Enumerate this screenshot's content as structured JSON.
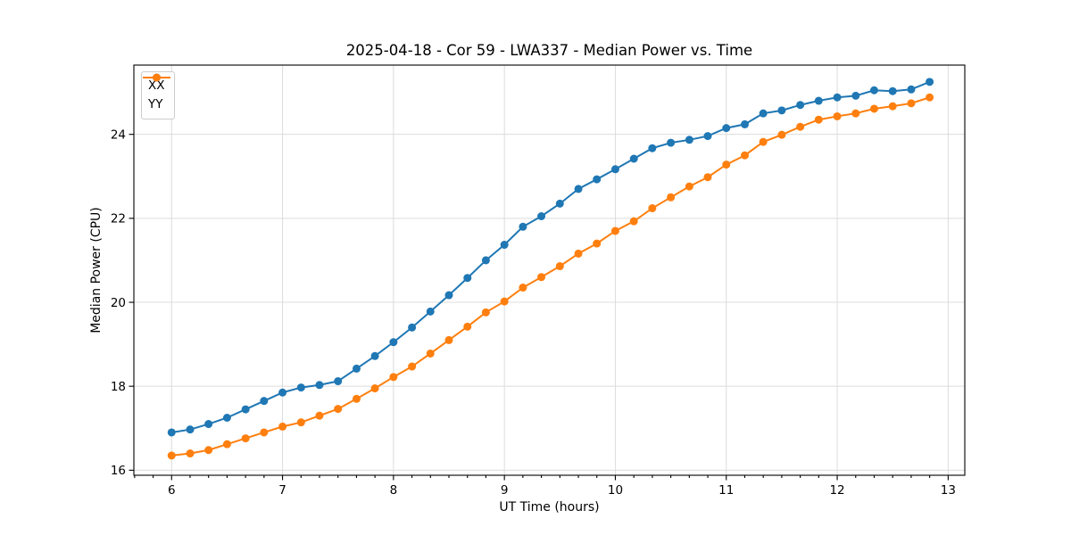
{
  "chart_data": {
    "type": "line",
    "title": "2025-04-18 - Cor 59 - LWA337 - Median Power vs. Time",
    "xlabel": "UT Time (hours)",
    "ylabel": "Median Power (CPU)",
    "xlim": [
      5.66,
      13.15
    ],
    "ylim": [
      15.88,
      25.65
    ],
    "x_major_ticks": [
      6,
      7,
      8,
      9,
      10,
      11,
      12,
      13
    ],
    "x_minor_ticks_per_hour": 6,
    "y_major_ticks": [
      16,
      18,
      20,
      22,
      24
    ],
    "grid": "major-only",
    "grid_color": "#dcdcdc",
    "spine_color": "#000000",
    "legend_position": "upper-left",
    "x": [
      6.0,
      6.167,
      6.333,
      6.5,
      6.667,
      6.833,
      7.0,
      7.167,
      7.333,
      7.5,
      7.667,
      7.833,
      8.0,
      8.167,
      8.333,
      8.5,
      8.667,
      8.833,
      9.0,
      9.167,
      9.333,
      9.5,
      9.667,
      9.833,
      10.0,
      10.167,
      10.333,
      10.5,
      10.667,
      10.833,
      11.0,
      11.167,
      11.333,
      11.5,
      11.667,
      11.833,
      12.0,
      12.167,
      12.333,
      12.5,
      12.667,
      12.833
    ],
    "series": [
      {
        "name": "XX",
        "color": "#1f77b4",
        "marker": "circle",
        "values": [
          16.9,
          16.97,
          17.1,
          17.25,
          17.45,
          17.65,
          17.85,
          17.97,
          18.03,
          18.12,
          18.42,
          18.72,
          19.05,
          19.4,
          19.78,
          20.17,
          20.58,
          21.0,
          21.37,
          21.8,
          22.05,
          22.35,
          22.7,
          22.93,
          23.17,
          23.42,
          23.67,
          23.8,
          23.87,
          23.96,
          24.15,
          24.24,
          24.5,
          24.57,
          24.7,
          24.8,
          24.88,
          24.92,
          25.05,
          25.03,
          25.07,
          25.25
        ]
      },
      {
        "name": "YY",
        "color": "#ff7f0e",
        "marker": "circle",
        "values": [
          16.35,
          16.4,
          16.48,
          16.62,
          16.76,
          16.9,
          17.04,
          17.14,
          17.3,
          17.46,
          17.7,
          17.95,
          18.22,
          18.47,
          18.78,
          19.1,
          19.42,
          19.76,
          20.02,
          20.35,
          20.6,
          20.86,
          21.16,
          21.4,
          21.7,
          21.93,
          22.24,
          22.5,
          22.76,
          22.98,
          23.28,
          23.5,
          23.82,
          23.99,
          24.18,
          24.35,
          24.43,
          24.5,
          24.61,
          24.67,
          24.74,
          24.88
        ]
      }
    ]
  }
}
